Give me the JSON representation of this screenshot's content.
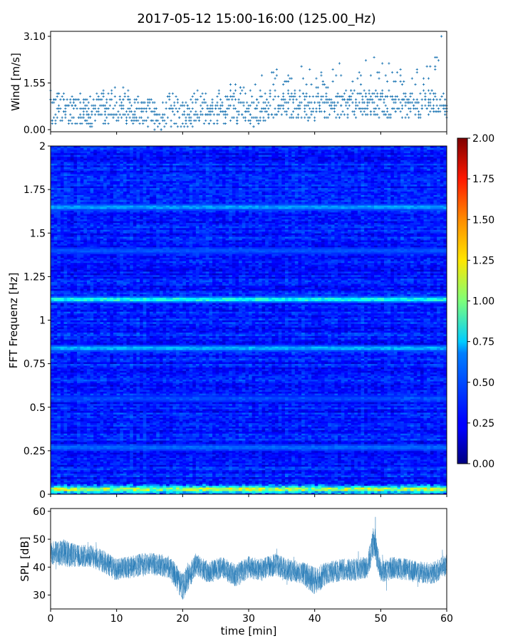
{
  "title": "2017-05-12 15:00-16:00 (125.00_Hz)",
  "colors": {
    "series": "#1f77b4",
    "axis": "#000000"
  },
  "chart_data": [
    {
      "type": "scatter",
      "ylabel": "Wind [m/s]",
      "xlim": [
        0,
        60
      ],
      "ylim": [
        0,
        3.1
      ],
      "yticks": [
        "0.00",
        "1.55",
        "3.10"
      ],
      "tick_values": [
        0,
        1.55,
        3.1
      ],
      "marker": "+",
      "x_step_min": 0.25,
      "x": [
        0,
        2,
        4,
        6,
        8,
        10,
        12,
        14,
        16,
        18,
        20,
        22,
        24,
        26,
        28,
        30,
        32,
        34,
        36,
        38,
        40,
        42,
        44,
        46,
        48,
        50,
        52,
        54,
        56,
        58,
        60
      ],
      "y_mean": [
        0.6,
        0.65,
        0.6,
        0.55,
        0.55,
        0.7,
        0.6,
        0.55,
        0.45,
        0.45,
        0.5,
        0.6,
        0.6,
        0.65,
        0.7,
        0.45,
        0.7,
        0.9,
        0.85,
        0.8,
        0.75,
        0.8,
        0.8,
        0.85,
        0.9,
        0.85,
        0.8,
        0.8,
        0.85,
        0.95,
        0.8
      ],
      "y_max": [
        1.4,
        1.3,
        1.2,
        1.1,
        1.3,
        1.55,
        1.3,
        1.2,
        1.0,
        1.3,
        1.2,
        1.4,
        1.5,
        1.4,
        1.6,
        1.3,
        1.9,
        2.0,
        2.1,
        2.4,
        1.9,
        2.0,
        2.2,
        2.0,
        2.4,
        2.5,
        2.0,
        2.1,
        2.0,
        2.5,
        2.2
      ],
      "peak": {
        "x": 59.2,
        "y": 3.1
      }
    },
    {
      "type": "heatmap",
      "ylabel": "FFT Frequenz [Hz]",
      "xlim": [
        0,
        60
      ],
      "ylim": [
        0,
        2
      ],
      "yticks": [
        "0",
        "0.25",
        "0.5",
        "0.75",
        "1",
        "1.25",
        "1.5",
        "1.75",
        "2"
      ],
      "tick_values": [
        0,
        0.25,
        0.5,
        0.75,
        1,
        1.25,
        1.5,
        1.75,
        2
      ],
      "colormap": "jet",
      "colorbar": {
        "range": [
          0,
          2
        ],
        "ticks": [
          "0.00",
          "0.25",
          "0.50",
          "0.75",
          "1.00",
          "1.25",
          "1.50",
          "1.75",
          "2.00"
        ],
        "tick_values": [
          0,
          0.25,
          0.5,
          0.75,
          1,
          1.25,
          1.5,
          1.75,
          2
        ]
      },
      "background_level": 0.3,
      "bands": [
        {
          "f": 1.12,
          "level": 0.95
        },
        {
          "f": 0.84,
          "level": 0.7
        },
        {
          "f": 1.65,
          "level": 0.65
        },
        {
          "f": 0.27,
          "level": 0.5
        },
        {
          "f": 1.4,
          "level": 0.45
        },
        {
          "f": 0.55,
          "level": 0.4
        },
        {
          "f": 0.03,
          "level": 1.1
        }
      ]
    },
    {
      "type": "line",
      "ylabel": "SPL [dB]",
      "xlabel": "time [min]",
      "xlim": [
        0,
        60
      ],
      "ylim": [
        25,
        61
      ],
      "xticks": [
        "0",
        "10",
        "20",
        "30",
        "40",
        "50",
        "60"
      ],
      "x_tick_values": [
        0,
        10,
        20,
        30,
        40,
        50,
        60
      ],
      "yticks": [
        "30",
        "40",
        "50",
        "60"
      ],
      "tick_values": [
        30,
        40,
        50,
        60
      ],
      "x": [
        0,
        2,
        4,
        6,
        8,
        10,
        12,
        14,
        16,
        18,
        20,
        22,
        24,
        26,
        28,
        30,
        32,
        34,
        36,
        38,
        40,
        42,
        44,
        46,
        48,
        49,
        50,
        52,
        54,
        56,
        58,
        60
      ],
      "y_mean": [
        45,
        45,
        44,
        44,
        42,
        39,
        40,
        41,
        41,
        40,
        33,
        41,
        38,
        40,
        37,
        40,
        39,
        41,
        39,
        38,
        35,
        38,
        39,
        39,
        40,
        50,
        38,
        40,
        39,
        38,
        38,
        41
      ],
      "y_spread": [
        4,
        5,
        4,
        4,
        4,
        4,
        4,
        4,
        4,
        4,
        5,
        4,
        4,
        4,
        4,
        4,
        4,
        4,
        4,
        4,
        5,
        4,
        4,
        4,
        4,
        6,
        4,
        4,
        4,
        4,
        4,
        4
      ],
      "peak": {
        "x": 49.2,
        "y": 58
      }
    }
  ]
}
